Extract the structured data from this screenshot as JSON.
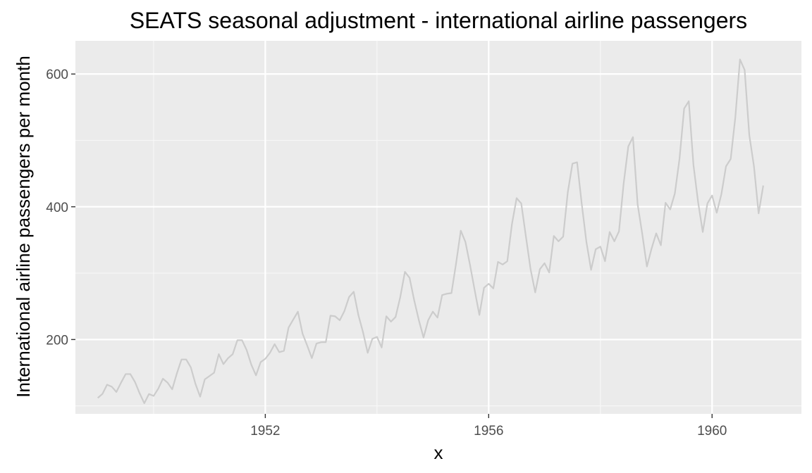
{
  "chart_data": {
    "type": "line",
    "title": "SEATS seasonal adjustment - international airline passengers",
    "xlabel": "x",
    "ylabel": "International airline passengers per month",
    "xlim": [
      1948.6,
      1961.6
    ],
    "ylim": [
      88,
      650
    ],
    "x_ticks": [
      1952,
      1956,
      1960
    ],
    "x_minor_ticks": [
      1950,
      1954,
      1958
    ],
    "y_ticks": [
      200,
      400,
      600
    ],
    "y_minor_ticks": [
      100,
      300,
      500
    ],
    "grid": true,
    "colors": {
      "panel": "#ebebeb",
      "grid_major": "#ffffff",
      "grid_minor": "#f7f7f7",
      "line": "#cccccc",
      "tick_mark": "#333333"
    },
    "series": [
      {
        "x_start": 1949.0,
        "x_step": 0.083333,
        "values": [
          112,
          118,
          132,
          129,
          121,
          135,
          148,
          148,
          136,
          119,
          104,
          118,
          115,
          126,
          141,
          135,
          125,
          149,
          170,
          170,
          158,
          133,
          114,
          140,
          145,
          150,
          178,
          163,
          172,
          178,
          199,
          199,
          184,
          162,
          146,
          166,
          171,
          180,
          193,
          181,
          183,
          218,
          230,
          242,
          209,
          191,
          172,
          194,
          196,
          196,
          236,
          235,
          229,
          243,
          264,
          272,
          237,
          211,
          180,
          201,
          204,
          188,
          235,
          227,
          234,
          264,
          302,
          293,
          259,
          229,
          203,
          229,
          242,
          233,
          267,
          269,
          270,
          315,
          364,
          347,
          312,
          274,
          237,
          278,
          284,
          277,
          317,
          313,
          318,
          374,
          413,
          405,
          355,
          306,
          271,
          306,
          315,
          301,
          356,
          348,
          355,
          422,
          465,
          467,
          404,
          347,
          305,
          336,
          340,
          318,
          362,
          348,
          363,
          435,
          491,
          505,
          404,
          359,
          310,
          337,
          360,
          342,
          406,
          396,
          420,
          472,
          548,
          559,
          463,
          407,
          362,
          405,
          417,
          391,
          419,
          461,
          472,
          535,
          622,
          606,
          508,
          461,
          390,
          432
        ]
      }
    ]
  }
}
